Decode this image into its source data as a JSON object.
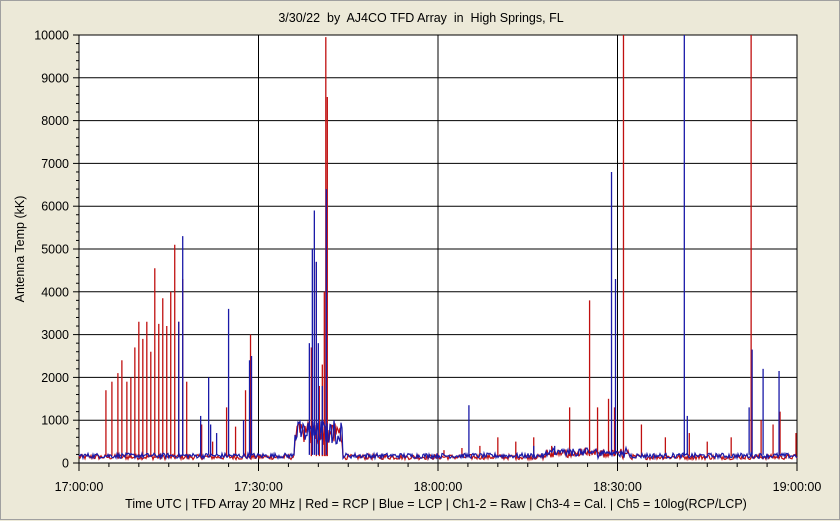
{
  "window": {
    "title": "3/30/22  by  AJ4CO TFD Array  in  High Springs, FL",
    "footer": "Time UTC | TFD Array 20 MHz | Red = RCP | Blue = LCP | Ch1-2 = Raw | Ch3-4 = Cal. | Ch5 = 10log(RCP/LCP)"
  },
  "colors": {
    "background": "#ece9d8",
    "plot_background": "#ffffff",
    "rcp": "#c01010",
    "lcp": "#1a1aa8",
    "grid": "#000000"
  },
  "chart_data": {
    "type": "line",
    "title": "3/30/22  by  AJ4CO TFD Array  in  High Springs, FL",
    "xlabel": "Time UTC | TFD Array 20 MHz | Red = RCP | Blue = LCP | Ch1-2 = Raw | Ch3-4 = Cal. | Ch5 = 10log(RCP/LCP)",
    "ylabel": "Antenna Temp (kK)",
    "xlim": [
      "17:00:00",
      "19:00:00"
    ],
    "ylim": [
      0,
      10000
    ],
    "x_ticks": [
      "17:00:00",
      "17:30:00",
      "18:00:00",
      "18:30:00",
      "19:00:00"
    ],
    "y_ticks": [
      "0",
      "1000",
      "2000",
      "3000",
      "4000",
      "5000",
      "6000",
      "7000",
      "8000",
      "9000",
      "10000"
    ],
    "grid": true,
    "series": [
      {
        "name": "RCP",
        "color": "#c01010",
        "baseline": 80,
        "spikes": [
          [
            "17:04:30",
            1700
          ],
          [
            "17:05:30",
            1900
          ],
          [
            "17:06:30",
            2100
          ],
          [
            "17:07:10",
            2400
          ],
          [
            "17:08:00",
            1900
          ],
          [
            "17:08:40",
            2000
          ],
          [
            "17:09:20",
            2700
          ],
          [
            "17:10:00",
            3300
          ],
          [
            "17:10:40",
            2900
          ],
          [
            "17:11:20",
            3300
          ],
          [
            "17:12:00",
            2600
          ],
          [
            "17:12:40",
            4550
          ],
          [
            "17:13:20",
            3250
          ],
          [
            "17:14:00",
            3850
          ],
          [
            "17:14:40",
            3200
          ],
          [
            "17:15:20",
            4000
          ],
          [
            "17:16:00",
            5100
          ],
          [
            "17:16:40",
            3300
          ],
          [
            "17:17:20",
            4300
          ],
          [
            "17:18:00",
            1900
          ],
          [
            "17:20:30",
            900
          ],
          [
            "17:22:20",
            500
          ],
          [
            "17:24:40",
            1300
          ],
          [
            "17:26:10",
            850
          ],
          [
            "17:27:50",
            1700
          ],
          [
            "17:28:40",
            3000
          ],
          [
            "17:38:50",
            2700
          ],
          [
            "17:39:40",
            4700
          ],
          [
            "17:40:10",
            1800
          ],
          [
            "17:40:40",
            2300
          ],
          [
            "17:41:00",
            4000
          ],
          [
            "17:41:15",
            9950
          ],
          [
            "17:41:30",
            8550
          ],
          [
            "18:01:00",
            300
          ],
          [
            "18:04:00",
            350
          ],
          [
            "18:07:00",
            400
          ],
          [
            "18:10:00",
            600
          ],
          [
            "18:13:00",
            500
          ],
          [
            "18:16:00",
            600
          ],
          [
            "18:19:00",
            400
          ],
          [
            "18:22:00",
            1300
          ],
          [
            "18:25:20",
            3800
          ],
          [
            "18:26:40",
            1300
          ],
          [
            "18:28:30",
            1500
          ],
          [
            "18:29:30",
            1300
          ],
          [
            "18:31:00",
            10000
          ],
          [
            "18:34:00",
            900
          ],
          [
            "18:38:00",
            600
          ],
          [
            "18:42:00",
            700
          ],
          [
            "18:45:00",
            500
          ],
          [
            "18:49:00",
            600
          ],
          [
            "18:52:20",
            10000
          ],
          [
            "18:54:00",
            1000
          ],
          [
            "18:56:00",
            900
          ],
          [
            "18:57:10",
            1200
          ],
          [
            "18:59:50",
            700
          ]
        ]
      },
      {
        "name": "LCP",
        "color": "#1a1aa8",
        "baseline": 110,
        "spikes": [
          [
            "17:16:40",
            3300
          ],
          [
            "17:17:20",
            5300
          ],
          [
            "17:20:20",
            1100
          ],
          [
            "17:21:40",
            2000
          ],
          [
            "17:22:00",
            900
          ],
          [
            "17:23:00",
            700
          ],
          [
            "17:25:00",
            3600
          ],
          [
            "17:27:30",
            1000
          ],
          [
            "17:28:30",
            2400
          ],
          [
            "17:28:50",
            2500
          ],
          [
            "17:38:30",
            2800
          ],
          [
            "17:39:00",
            5000
          ],
          [
            "17:39:20",
            5900
          ],
          [
            "17:39:40",
            4700
          ],
          [
            "17:40:00",
            2800
          ],
          [
            "17:40:40",
            1800
          ],
          [
            "17:41:20",
            6400
          ],
          [
            "18:05:10",
            1350
          ],
          [
            "18:16:00",
            400
          ],
          [
            "18:19:30",
            400
          ],
          [
            "18:29:00",
            6800
          ],
          [
            "18:29:40",
            4300
          ],
          [
            "18:41:10",
            10000
          ],
          [
            "18:41:40",
            1100
          ],
          [
            "18:52:00",
            1300
          ],
          [
            "18:52:30",
            2650
          ],
          [
            "18:54:20",
            2200
          ],
          [
            "18:57:00",
            2150
          ]
        ]
      }
    ]
  }
}
